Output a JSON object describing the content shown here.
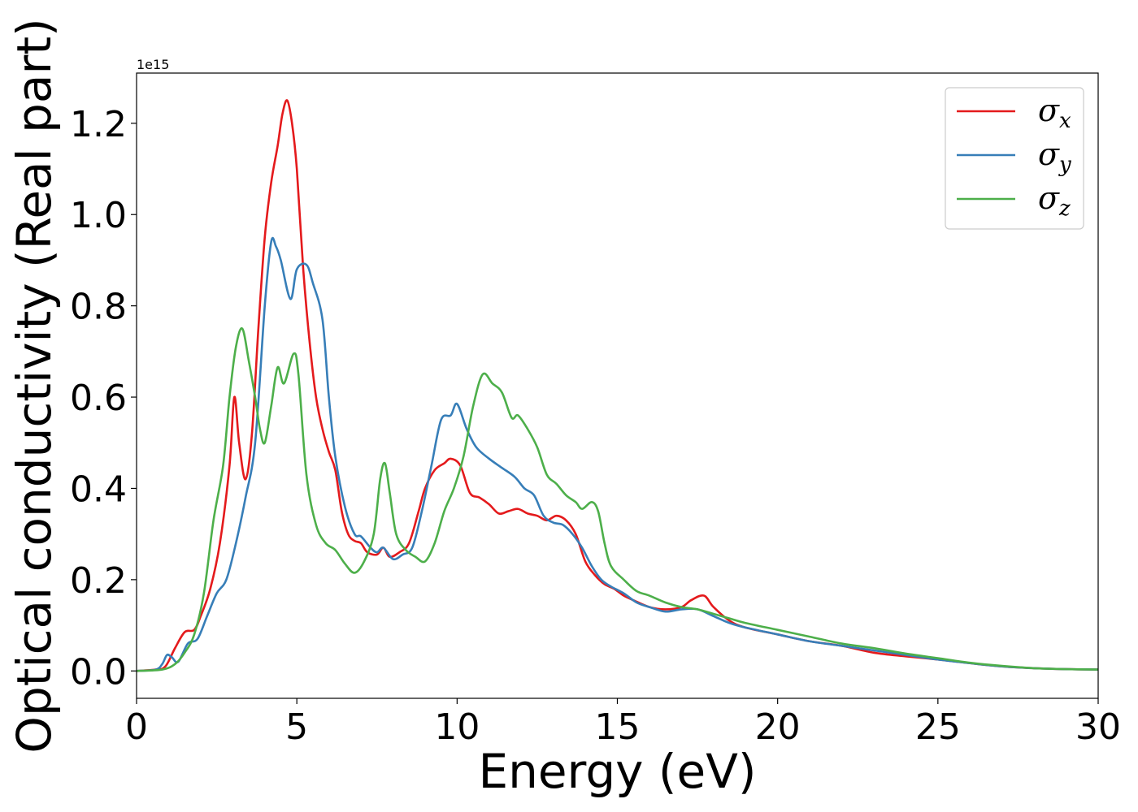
{
  "chart_data": {
    "type": "line",
    "title": "",
    "xlabel": "Energy (eV)",
    "ylabel": "Optical conductivity (Real part)",
    "y_offset_text": "1e15",
    "y_scale_factor": 1000000000000000.0,
    "xlim": [
      0,
      30
    ],
    "ylim": [
      -0.06,
      1.31
    ],
    "xticks": [
      0,
      5,
      10,
      15,
      20,
      25,
      30
    ],
    "xtick_labels": [
      "0",
      "5",
      "10",
      "15",
      "20",
      "25",
      "30"
    ],
    "yticks": [
      0.0,
      0.2,
      0.4,
      0.6,
      0.8,
      1.0,
      1.2
    ],
    "ytick_labels": [
      "0.0",
      "0.2",
      "0.4",
      "0.6",
      "0.8",
      "1.0",
      "1.2"
    ],
    "grid": false,
    "legend_position": "top-right",
    "series": [
      {
        "name": "σx",
        "symbol": "σ",
        "subscript": "x",
        "color": "#e41a1c",
        "points": [
          [
            0,
            0
          ],
          [
            0.6,
            0.003
          ],
          [
            0.9,
            0.01
          ],
          [
            1.2,
            0.05
          ],
          [
            1.5,
            0.085
          ],
          [
            1.8,
            0.09
          ],
          [
            2.0,
            0.12
          ],
          [
            2.3,
            0.18
          ],
          [
            2.6,
            0.28
          ],
          [
            2.9,
            0.45
          ],
          [
            3.05,
            0.6
          ],
          [
            3.2,
            0.5
          ],
          [
            3.4,
            0.42
          ],
          [
            3.6,
            0.52
          ],
          [
            3.8,
            0.75
          ],
          [
            4.0,
            0.95
          ],
          [
            4.2,
            1.07
          ],
          [
            4.4,
            1.15
          ],
          [
            4.55,
            1.22
          ],
          [
            4.7,
            1.25
          ],
          [
            4.85,
            1.2
          ],
          [
            5.0,
            1.1
          ],
          [
            5.2,
            0.88
          ],
          [
            5.4,
            0.72
          ],
          [
            5.6,
            0.6
          ],
          [
            5.8,
            0.53
          ],
          [
            6.0,
            0.48
          ],
          [
            6.2,
            0.44
          ],
          [
            6.4,
            0.35
          ],
          [
            6.6,
            0.3
          ],
          [
            6.8,
            0.285
          ],
          [
            7.0,
            0.28
          ],
          [
            7.2,
            0.26
          ],
          [
            7.5,
            0.255
          ],
          [
            7.7,
            0.27
          ],
          [
            7.9,
            0.25
          ],
          [
            8.2,
            0.26
          ],
          [
            8.5,
            0.28
          ],
          [
            8.8,
            0.35
          ],
          [
            9.0,
            0.4
          ],
          [
            9.3,
            0.44
          ],
          [
            9.6,
            0.455
          ],
          [
            9.8,
            0.465
          ],
          [
            10.1,
            0.45
          ],
          [
            10.4,
            0.39
          ],
          [
            10.7,
            0.38
          ],
          [
            11.0,
            0.365
          ],
          [
            11.3,
            0.345
          ],
          [
            11.6,
            0.35
          ],
          [
            11.9,
            0.355
          ],
          [
            12.2,
            0.345
          ],
          [
            12.5,
            0.34
          ],
          [
            12.8,
            0.33
          ],
          [
            13.1,
            0.34
          ],
          [
            13.4,
            0.33
          ],
          [
            13.7,
            0.3
          ],
          [
            14.0,
            0.24
          ],
          [
            14.3,
            0.21
          ],
          [
            14.6,
            0.19
          ],
          [
            14.9,
            0.18
          ],
          [
            15.2,
            0.165
          ],
          [
            15.5,
            0.155
          ],
          [
            16.0,
            0.14
          ],
          [
            16.5,
            0.135
          ],
          [
            17.0,
            0.14
          ],
          [
            17.3,
            0.155
          ],
          [
            17.7,
            0.165
          ],
          [
            18.0,
            0.14
          ],
          [
            18.5,
            0.11
          ],
          [
            19.0,
            0.095
          ],
          [
            20.0,
            0.08
          ],
          [
            21.0,
            0.065
          ],
          [
            22.0,
            0.055
          ],
          [
            23.0,
            0.04
          ],
          [
            24.0,
            0.032
          ],
          [
            25.0,
            0.025
          ],
          [
            26.0,
            0.017
          ],
          [
            27.0,
            0.01
          ],
          [
            28.0,
            0.006
          ],
          [
            29.0,
            0.004
          ],
          [
            30.0,
            0.003
          ]
        ]
      },
      {
        "name": "σy",
        "symbol": "σ",
        "subscript": "y",
        "color": "#377eb8",
        "points": [
          [
            0,
            0
          ],
          [
            0.6,
            0.003
          ],
          [
            0.8,
            0.015
          ],
          [
            0.95,
            0.035
          ],
          [
            1.1,
            0.03
          ],
          [
            1.3,
            0.02
          ],
          [
            1.6,
            0.06
          ],
          [
            1.9,
            0.07
          ],
          [
            2.2,
            0.12
          ],
          [
            2.5,
            0.17
          ],
          [
            2.8,
            0.2
          ],
          [
            3.1,
            0.28
          ],
          [
            3.4,
            0.38
          ],
          [
            3.7,
            0.5
          ],
          [
            4.0,
            0.8
          ],
          [
            4.2,
            0.94
          ],
          [
            4.35,
            0.93
          ],
          [
            4.5,
            0.9
          ],
          [
            4.8,
            0.815
          ],
          [
            5.0,
            0.88
          ],
          [
            5.3,
            0.89
          ],
          [
            5.5,
            0.85
          ],
          [
            5.8,
            0.77
          ],
          [
            6.0,
            0.6
          ],
          [
            6.2,
            0.47
          ],
          [
            6.5,
            0.36
          ],
          [
            6.8,
            0.3
          ],
          [
            7.0,
            0.295
          ],
          [
            7.3,
            0.27
          ],
          [
            7.5,
            0.26
          ],
          [
            7.7,
            0.27
          ],
          [
            8.0,
            0.245
          ],
          [
            8.3,
            0.255
          ],
          [
            8.6,
            0.27
          ],
          [
            8.9,
            0.35
          ],
          [
            9.2,
            0.45
          ],
          [
            9.5,
            0.55
          ],
          [
            9.8,
            0.56
          ],
          [
            10.0,
            0.585
          ],
          [
            10.3,
            0.53
          ],
          [
            10.6,
            0.49
          ],
          [
            11.0,
            0.465
          ],
          [
            11.4,
            0.445
          ],
          [
            11.8,
            0.425
          ],
          [
            12.1,
            0.4
          ],
          [
            12.4,
            0.385
          ],
          [
            12.7,
            0.34
          ],
          [
            13.0,
            0.325
          ],
          [
            13.3,
            0.32
          ],
          [
            13.6,
            0.3
          ],
          [
            13.9,
            0.27
          ],
          [
            14.2,
            0.23
          ],
          [
            14.5,
            0.2
          ],
          [
            14.8,
            0.185
          ],
          [
            15.2,
            0.17
          ],
          [
            15.6,
            0.15
          ],
          [
            16.0,
            0.14
          ],
          [
            16.5,
            0.13
          ],
          [
            17.0,
            0.135
          ],
          [
            17.5,
            0.135
          ],
          [
            18.0,
            0.12
          ],
          [
            18.5,
            0.105
          ],
          [
            19.0,
            0.095
          ],
          [
            20.0,
            0.08
          ],
          [
            21.0,
            0.065
          ],
          [
            22.0,
            0.055
          ],
          [
            23.0,
            0.045
          ],
          [
            24.0,
            0.035
          ],
          [
            25.0,
            0.025
          ],
          [
            26.0,
            0.017
          ],
          [
            27.0,
            0.01
          ],
          [
            28.0,
            0.006
          ],
          [
            29.0,
            0.004
          ],
          [
            30.0,
            0.003
          ]
        ]
      },
      {
        "name": "σz",
        "symbol": "σ",
        "subscript": "z",
        "color": "#4daf4a",
        "points": [
          [
            0,
            0
          ],
          [
            0.8,
            0.003
          ],
          [
            1.2,
            0.015
          ],
          [
            1.5,
            0.04
          ],
          [
            1.8,
            0.08
          ],
          [
            2.1,
            0.17
          ],
          [
            2.4,
            0.33
          ],
          [
            2.7,
            0.45
          ],
          [
            2.9,
            0.6
          ],
          [
            3.1,
            0.71
          ],
          [
            3.3,
            0.75
          ],
          [
            3.5,
            0.68
          ],
          [
            3.7,
            0.6
          ],
          [
            3.85,
            0.53
          ],
          [
            4.0,
            0.5
          ],
          [
            4.2,
            0.58
          ],
          [
            4.4,
            0.665
          ],
          [
            4.6,
            0.63
          ],
          [
            4.9,
            0.695
          ],
          [
            5.05,
            0.65
          ],
          [
            5.3,
            0.43
          ],
          [
            5.6,
            0.32
          ],
          [
            5.9,
            0.28
          ],
          [
            6.2,
            0.265
          ],
          [
            6.5,
            0.235
          ],
          [
            6.8,
            0.215
          ],
          [
            7.1,
            0.24
          ],
          [
            7.4,
            0.3
          ],
          [
            7.6,
            0.42
          ],
          [
            7.75,
            0.455
          ],
          [
            7.9,
            0.39
          ],
          [
            8.1,
            0.3
          ],
          [
            8.4,
            0.265
          ],
          [
            8.7,
            0.25
          ],
          [
            9.0,
            0.24
          ],
          [
            9.3,
            0.28
          ],
          [
            9.6,
            0.35
          ],
          [
            9.9,
            0.4
          ],
          [
            10.2,
            0.47
          ],
          [
            10.5,
            0.58
          ],
          [
            10.8,
            0.65
          ],
          [
            11.1,
            0.63
          ],
          [
            11.4,
            0.61
          ],
          [
            11.7,
            0.555
          ],
          [
            11.9,
            0.56
          ],
          [
            12.2,
            0.53
          ],
          [
            12.5,
            0.49
          ],
          [
            12.8,
            0.43
          ],
          [
            13.1,
            0.41
          ],
          [
            13.4,
            0.385
          ],
          [
            13.7,
            0.37
          ],
          [
            13.9,
            0.355
          ],
          [
            14.2,
            0.37
          ],
          [
            14.4,
            0.35
          ],
          [
            14.6,
            0.28
          ],
          [
            14.8,
            0.23
          ],
          [
            15.2,
            0.2
          ],
          [
            15.6,
            0.175
          ],
          [
            16.0,
            0.165
          ],
          [
            16.5,
            0.15
          ],
          [
            17.0,
            0.14
          ],
          [
            17.5,
            0.135
          ],
          [
            18.0,
            0.125
          ],
          [
            18.5,
            0.115
          ],
          [
            19.0,
            0.105
          ],
          [
            20.0,
            0.09
          ],
          [
            21.0,
            0.075
          ],
          [
            22.0,
            0.06
          ],
          [
            23.0,
            0.05
          ],
          [
            24.0,
            0.038
          ],
          [
            25.0,
            0.028
          ],
          [
            26.0,
            0.018
          ],
          [
            27.0,
            0.011
          ],
          [
            28.0,
            0.006
          ],
          [
            29.0,
            0.004
          ],
          [
            30.0,
            0.003
          ]
        ]
      }
    ]
  }
}
